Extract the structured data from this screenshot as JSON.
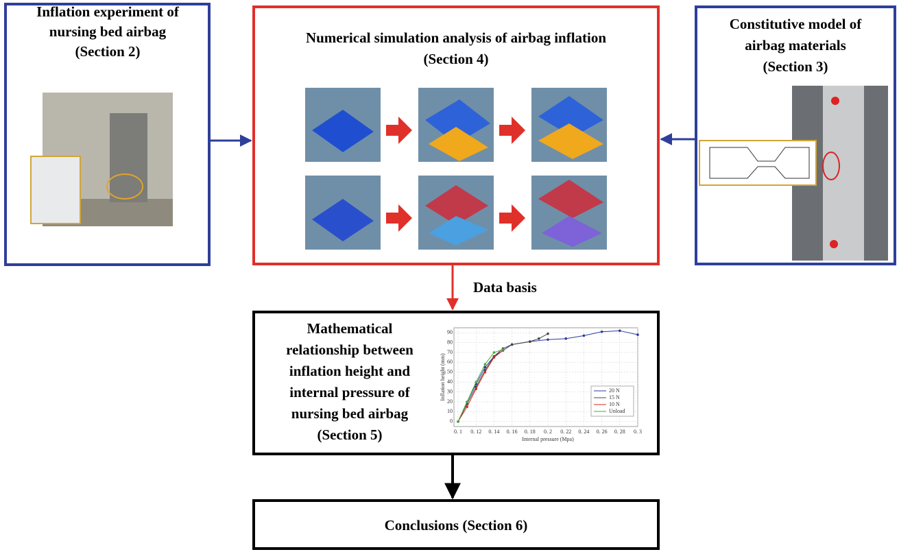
{
  "nodes": [
    {
      "title": [
        "Inflation experiment of",
        "nursing bed airbag",
        "(Section 2)"
      ]
    },
    {
      "title": [
        "Numerical simulation analysis of airbag inflation",
        "(Section 4)"
      ]
    },
    {
      "title": [
        "Constitutive model of",
        "airbag materials",
        "(Section 3)"
      ]
    },
    {
      "title": [
        "Mathematical",
        "relationship between",
        "inflation height and",
        "internal pressure of",
        "nursing bed airbag",
        "(Section 5)"
      ],
      "chart": {
        "type": "line",
        "xlabel": "Internal pressure (Mpa)",
        "ylabel": "Inflation height (mm)",
        "xlim": [
          0.1,
          0.3
        ],
        "ylim": [
          -5,
          95
        ],
        "xticks": [
          {
            "value": 0.1,
            "label": "0. 1"
          },
          {
            "value": 0.12,
            "label": "0. 12"
          },
          {
            "value": 0.14,
            "label": "0. 14"
          },
          {
            "value": 0.16,
            "label": "0. 16"
          },
          {
            "value": 0.18,
            "label": "0. 18"
          },
          {
            "value": 0.2,
            "label": "0. 2"
          },
          {
            "value": 0.22,
            "label": "0. 22"
          },
          {
            "value": 0.24,
            "label": "0. 24"
          },
          {
            "value": 0.26,
            "label": "0. 26"
          },
          {
            "value": 0.28,
            "label": "0. 28"
          },
          {
            "value": 0.3,
            "label": "0. 3"
          }
        ],
        "yticks": [
          0,
          10,
          20,
          30,
          40,
          50,
          60,
          70,
          80,
          90
        ],
        "grid": true,
        "series": [
          {
            "name": "20 N",
            "color": "#2b3a9c",
            "x": [
              0.1,
              0.11,
              0.12,
              0.13,
              0.14,
              0.16,
              0.18,
              0.2,
              0.22,
              0.24,
              0.26,
              0.28,
              0.3
            ],
            "values": [
              0,
              20,
              38,
              55,
              66,
              78,
              81,
              83,
              84,
              87,
              91,
              92,
              88
            ]
          },
          {
            "name": "15 N",
            "color": "#444444",
            "x": [
              0.1,
              0.11,
              0.12,
              0.13,
              0.14,
              0.15,
              0.16,
              0.18,
              0.19,
              0.2
            ],
            "values": [
              0,
              18,
              35,
              52,
              66,
              74,
              78,
              81,
              84,
              89
            ]
          },
          {
            "name": "10 N",
            "color": "#d9261c",
            "x": [
              0.1,
              0.11,
              0.12,
              0.13,
              0.14,
              0.15
            ],
            "values": [
              0,
              15,
              33,
              50,
              65,
              72
            ]
          },
          {
            "name": "Unload",
            "color": "#3fae3f",
            "x": [
              0.1,
              0.11,
              0.12,
              0.13,
              0.14,
              0.15
            ],
            "values": [
              0,
              20,
              40,
              58,
              70,
              73
            ]
          }
        ]
      }
    },
    {
      "title": [
        "Conclusions (Section 6)"
      ]
    }
  ],
  "edges": [
    {
      "label": "Data basis"
    }
  ]
}
